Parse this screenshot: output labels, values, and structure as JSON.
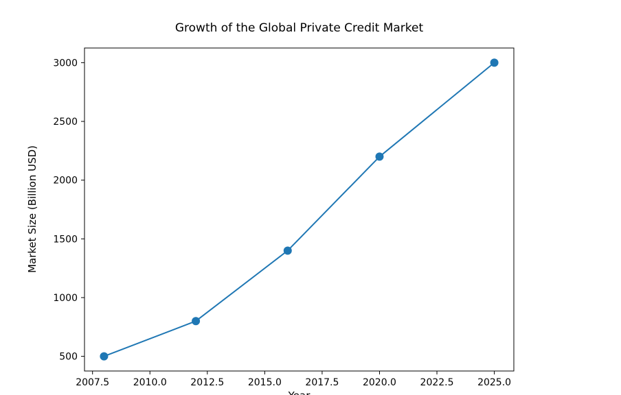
{
  "chart_data": {
    "type": "line",
    "title": "Growth of the Global Private Credit Market",
    "xlabel": "Year",
    "ylabel": "Market Size (Billion USD)",
    "x": [
      2008,
      2012,
      2016,
      2020,
      2025
    ],
    "values": [
      500,
      800,
      1400,
      2200,
      3000
    ],
    "xlim": [
      2007.15,
      2025.85
    ],
    "ylim": [
      375,
      3125
    ],
    "x_ticks": [
      2007.5,
      2010.0,
      2012.5,
      2015.0,
      2017.5,
      2020.0,
      2022.5,
      2025.0
    ],
    "x_tick_labels": [
      "2007.5",
      "2010.0",
      "2012.5",
      "2015.0",
      "2017.5",
      "2020.0",
      "2022.5",
      "2025.0"
    ],
    "y_ticks": [
      500,
      1000,
      1500,
      2000,
      2500,
      3000
    ],
    "y_tick_labels": [
      "500",
      "1000",
      "1500",
      "2000",
      "2500",
      "3000"
    ],
    "line_color": "#1f77b4",
    "marker": "circle",
    "marker_color": "#1f77b4",
    "grid": false,
    "legend": "none",
    "background": "#ffffff",
    "spine_color": "#000000"
  }
}
